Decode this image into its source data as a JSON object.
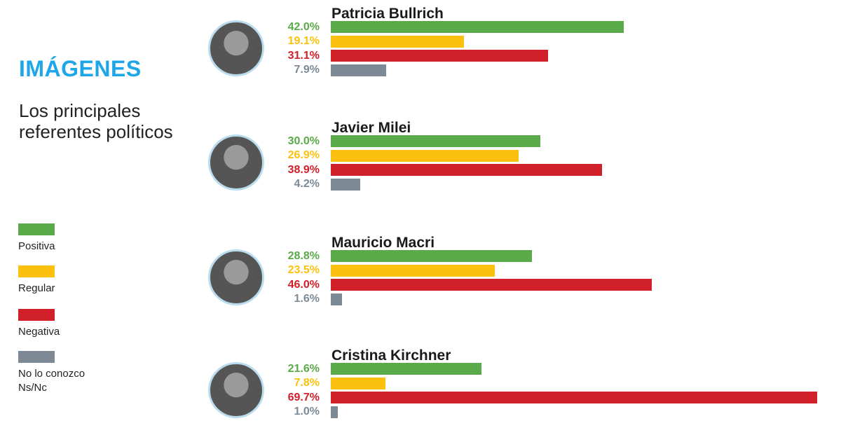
{
  "chart_data": {
    "type": "bar",
    "orientation": "horizontal",
    "title": "IMÁGENES",
    "subtitle": "Los principales referentes políticos",
    "categories": [
      "Patricia Bullrich",
      "Javier Milei",
      "Mauricio Macri",
      "Cristina Kirchner"
    ],
    "series": [
      {
        "name": "Positiva",
        "color": "#5aaa4a",
        "values": [
          42.0,
          30.0,
          28.8,
          21.6
        ],
        "value_labels": [
          "42.0%",
          "30.0%",
          "28.8%",
          "21.6%"
        ]
      },
      {
        "name": "Regular",
        "color": "#fcc10f",
        "values": [
          19.1,
          26.9,
          23.5,
          7.8
        ],
        "value_labels": [
          "19.1%",
          "26.9%",
          "23.5%",
          "7.8%"
        ]
      },
      {
        "name": "Negativa",
        "color": "#d0202a",
        "values": [
          31.1,
          38.9,
          46.0,
          69.7
        ],
        "value_labels": [
          "31.1%",
          "38.9%",
          "46.0%",
          "69.7%"
        ]
      },
      {
        "name": "No lo conozco Ns/Nc",
        "color": "#7d8a96",
        "values": [
          7.9,
          4.2,
          1.6,
          1.0
        ],
        "value_labels": [
          "7.9%",
          "4.2%",
          "1.6%",
          "1.0%"
        ]
      }
    ]
  }
}
